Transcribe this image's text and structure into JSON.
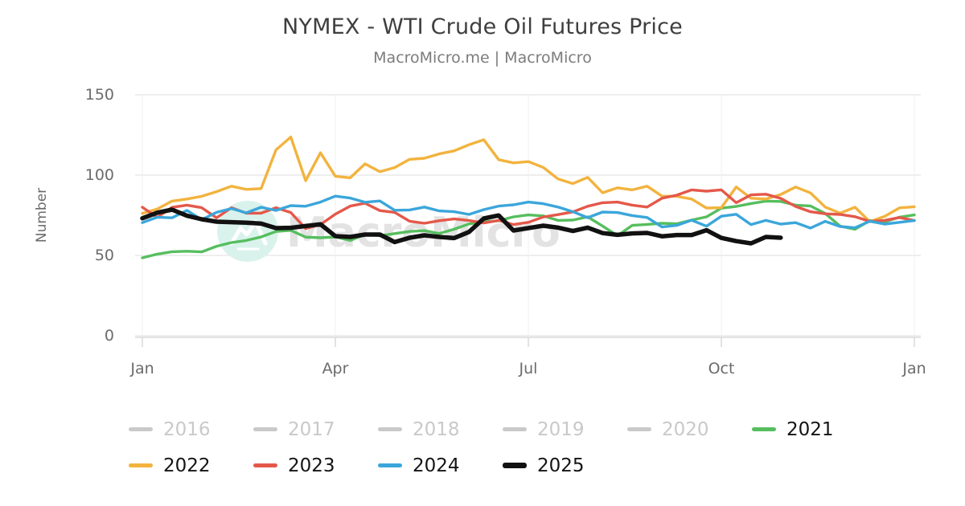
{
  "header": {
    "title": "NYMEX - WTI Crude Oil Futures Price",
    "subtitle": "MacroMicro.me | MacroMicro"
  },
  "watermark": {
    "text": "MacroMicro",
    "circle_color": "#d9f3ec",
    "logo_color": "#ffffff",
    "text_color": "#e3e3e3"
  },
  "axes": {
    "y_title": "Number",
    "y_ticks": [
      0,
      50,
      100,
      150
    ],
    "x_ticks": [
      "Jan",
      "Apr",
      "Jul",
      "Oct",
      "Jan"
    ]
  },
  "style": {
    "grid_color": "#e8e8e8",
    "vgrid_color": "#f0f0f0",
    "axis_line_color": "#d9d9d9",
    "tick_text_color": "#6b6b6b",
    "title_color": "#3f3f3f",
    "subtitle_color": "#7c7c7c",
    "legend_inactive_color": "#c9c9c9",
    "legend_active_text_color": "#141414"
  },
  "chart_data": {
    "type": "line",
    "title": "NYMEX - WTI Crude Oil Futures Price",
    "xlabel": "",
    "ylabel": "Number",
    "ylim": [
      0,
      150
    ],
    "y_gridlines": [
      0,
      50,
      100,
      150
    ],
    "x_axis": "weeks of year, Jan through following Jan, one overlaid line per year",
    "x_range_weeks": [
      0,
      52
    ],
    "x_tick_positions_weeks": [
      0,
      13,
      26,
      39,
      52
    ],
    "x_tick_labels": [
      "Jan",
      "Apr",
      "Jul",
      "Oct",
      "Jan"
    ],
    "grid": true,
    "legend_position": "bottom",
    "series": [
      {
        "name": "2016",
        "color": "#c9c9c9",
        "visible": false,
        "values": []
      },
      {
        "name": "2017",
        "color": "#c9c9c9",
        "visible": false,
        "values": []
      },
      {
        "name": "2018",
        "color": "#c9c9c9",
        "visible": false,
        "values": []
      },
      {
        "name": "2019",
        "color": "#c9c9c9",
        "visible": false,
        "values": []
      },
      {
        "name": "2020",
        "color": "#c9c9c9",
        "visible": false,
        "values": []
      },
      {
        "name": "2021",
        "color": "#56be5e",
        "visible": true,
        "line_width": 3.4,
        "values": [
          48.5,
          50.8,
          52.3,
          52.6,
          52.2,
          55.7,
          58.0,
          59.3,
          61.5,
          64.9,
          65.6,
          61.4,
          61.0,
          61.5,
          59.3,
          63.1,
          62.2,
          63.6,
          64.9,
          65.4,
          63.6,
          66.3,
          69.6,
          70.9,
          71.6,
          74.0,
          75.2,
          74.6,
          71.8,
          72.0,
          74.0,
          68.3,
          62.3,
          68.7,
          69.3,
          70.0,
          69.7,
          72.0,
          74.0,
          79.4,
          80.5,
          82.3,
          83.8,
          83.6,
          81.3,
          80.8,
          76.1,
          68.2,
          66.3,
          71.7,
          70.9,
          73.8,
          75.2
        ]
      },
      {
        "name": "2022",
        "color": "#f2b33e",
        "visible": true,
        "line_width": 3.4,
        "values": [
          76.1,
          78.9,
          83.8,
          85.1,
          86.8,
          89.7,
          93.1,
          91.1,
          91.6,
          115.7,
          123.7,
          96.5,
          113.9,
          99.3,
          98.3,
          107.0,
          102.1,
          104.7,
          109.8,
          110.5,
          113.2,
          115.1,
          118.9,
          122.0,
          109.6,
          107.6,
          108.4,
          104.8,
          97.6,
          94.7,
          98.6,
          89.0,
          92.1,
          90.8,
          93.1,
          86.9,
          86.8,
          85.1,
          79.5,
          79.7,
          92.6,
          85.6,
          85.1,
          87.9,
          92.6,
          88.9,
          80.1,
          76.3,
          80.0,
          71.0,
          74.3,
          79.6,
          80.3
        ]
      },
      {
        "name": "2023",
        "color": "#e4584a",
        "visible": true,
        "line_width": 3.4,
        "values": [
          80.0,
          73.7,
          79.9,
          81.3,
          79.7,
          73.4,
          79.7,
          76.3,
          76.3,
          79.7,
          76.7,
          66.7,
          69.2,
          75.7,
          80.7,
          82.5,
          77.9,
          76.8,
          71.3,
          70.0,
          71.6,
          72.7,
          71.7,
          70.2,
          71.8,
          69.2,
          70.6,
          73.9,
          75.4,
          77.1,
          80.6,
          82.8,
          83.2,
          81.3,
          80.1,
          85.6,
          87.5,
          90.8,
          90.0,
          90.8,
          82.8,
          87.7,
          88.1,
          85.5,
          80.5,
          77.2,
          75.9,
          75.5,
          74.1,
          71.2,
          71.8,
          73.6,
          71.7
        ]
      },
      {
        "name": "2024",
        "color": "#3ba6db",
        "visible": true,
        "line_width": 3.4,
        "values": [
          70.4,
          73.8,
          73.4,
          78.0,
          72.3,
          76.8,
          79.2,
          76.5,
          80.0,
          78.0,
          81.0,
          80.6,
          83.2,
          86.9,
          85.7,
          83.1,
          83.9,
          78.1,
          78.3,
          80.1,
          77.7,
          77.2,
          75.5,
          78.5,
          80.7,
          81.5,
          83.2,
          82.2,
          80.1,
          77.2,
          73.5,
          77.0,
          76.7,
          74.8,
          73.6,
          67.7,
          68.7,
          71.9,
          68.2,
          74.4,
          75.6,
          69.2,
          71.8,
          69.5,
          70.4,
          67.0,
          71.2,
          68.0,
          67.2,
          71.3,
          69.5,
          70.6,
          71.7
        ]
      },
      {
        "name": "2025",
        "color": "#111111",
        "visible": true,
        "line_width": 5.5,
        "values": [
          73.1,
          76.6,
          78.5,
          74.7,
          72.5,
          71.0,
          70.7,
          70.4,
          69.8,
          67.0,
          67.2,
          68.3,
          69.4,
          62.0,
          61.5,
          63.0,
          63.0,
          58.3,
          61.0,
          62.5,
          61.5,
          60.8,
          64.6,
          73.0,
          74.9,
          65.5,
          67.0,
          68.5,
          67.3,
          65.2,
          67.3,
          63.9,
          62.8,
          63.7,
          64.0,
          61.9,
          62.7,
          62.7,
          65.7,
          60.9,
          58.9,
          57.5,
          61.5,
          61.0
        ]
      }
    ]
  }
}
